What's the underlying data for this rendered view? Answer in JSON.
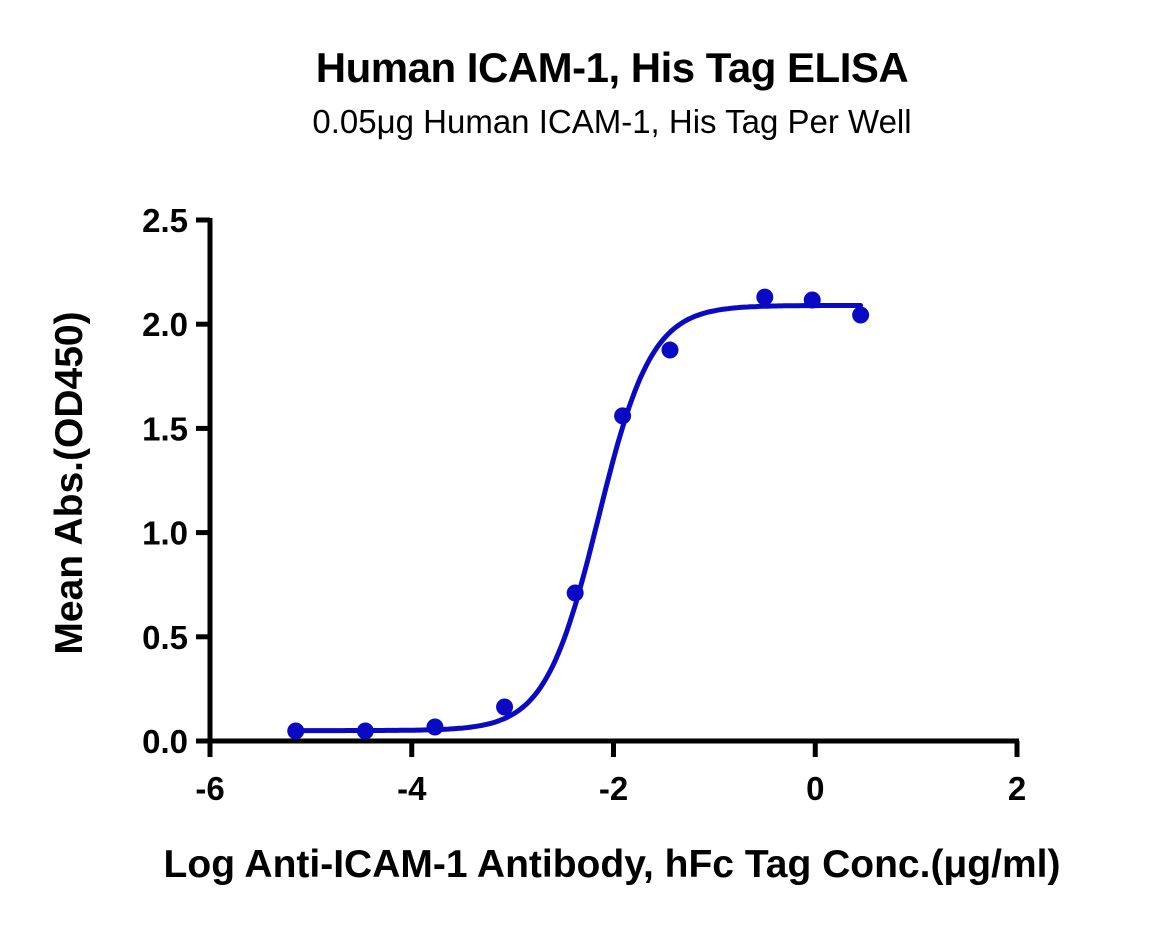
{
  "chart": {
    "title": "Human ICAM-1, His Tag ELISA",
    "subtitle": "0.05μg Human ICAM-1, His Tag Per Well",
    "xlabel": "Log Anti-ICAM-1 Antibody, hFc Tag Conc.(μg/ml)",
    "ylabel": "Mean Abs.(OD450)",
    "color": "#0a0ac4"
  },
  "chart_data": {
    "type": "scatter",
    "title": "Human ICAM-1, His Tag ELISA",
    "subtitle": "0.05μg Human ICAM-1, His Tag Per Well",
    "xlabel": "Log Anti-ICAM-1 Antibody, hFc Tag Conc.(μg/ml)",
    "ylabel": "Mean Abs.(OD450)",
    "xlim": [
      -6,
      2
    ],
    "ylim": [
      0,
      2.5
    ],
    "xticks": [
      -6,
      -4,
      -2,
      0,
      2
    ],
    "xtick_labels": [
      "-6",
      "-4",
      "-2",
      "0",
      "2"
    ],
    "yticks": [
      0,
      0.5,
      1.0,
      1.5,
      2.0,
      2.5
    ],
    "ytick_labels": [
      "0.0",
      "0.5",
      "1.0",
      "1.5",
      "2.0",
      "2.5"
    ],
    "grid": false,
    "legend": null,
    "series": [
      {
        "name": "Mean Abs.(OD450)",
        "x": [
          -5.15,
          -4.46,
          -3.77,
          -3.08,
          -2.38,
          -1.91,
          -1.44,
          -0.5,
          -0.03,
          0.45
        ],
        "y": [
          0.048,
          0.048,
          0.067,
          0.163,
          0.71,
          1.56,
          1.876,
          2.13,
          2.116,
          2.044
        ]
      }
    ],
    "fit": {
      "model": "4PL sigmoidal",
      "bottom": 0.05,
      "top": 2.09,
      "log_ec50": -2.15,
      "hill_slope": 1.65,
      "x_range": [
        -5.15,
        0.45
      ]
    }
  }
}
